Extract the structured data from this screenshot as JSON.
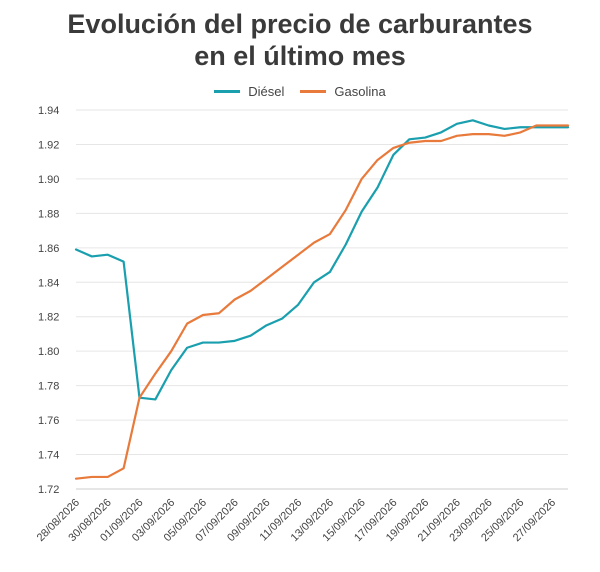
{
  "title_line1": "Evolución del precio de carburantes",
  "title_line2": "en el último mes",
  "colors": {
    "diesel": "#1a9fae",
    "gasolina": "#e87a3c",
    "grid": "#e6e6e6",
    "axis": "#cccccc"
  },
  "chart_data": {
    "type": "line",
    "title": "Evolución del precio de carburantes en el último mes",
    "xlabel": "",
    "ylabel": "",
    "ylim": [
      1.72,
      1.94
    ],
    "yticks": [
      "1.72",
      "1.74",
      "1.76",
      "1.78",
      "1.80",
      "1.82",
      "1.84",
      "1.86",
      "1.88",
      "1.90",
      "1.92",
      "1.94"
    ],
    "grid": true,
    "legend_position": "top-center",
    "x": [
      "28/08/2026",
      "29/08/2026",
      "30/08/2026",
      "31/08/2026",
      "01/09/2026",
      "02/09/2026",
      "03/09/2026",
      "04/09/2026",
      "05/09/2026",
      "06/09/2026",
      "07/09/2026",
      "08/09/2026",
      "09/09/2026",
      "10/09/2026",
      "11/09/2026",
      "12/09/2026",
      "13/09/2026",
      "14/09/2026",
      "15/09/2026",
      "16/09/2026",
      "17/09/2026",
      "18/09/2026",
      "19/09/2026",
      "20/09/2026",
      "21/09/2026",
      "22/09/2026",
      "23/09/2026",
      "24/09/2026",
      "25/09/2026",
      "26/09/2026",
      "27/09/2026",
      "28/09/2026"
    ],
    "xtick_labels": [
      "28/08/2026",
      "30/08/2026",
      "01/09/2026",
      "03/09/2026",
      "05/09/2026",
      "07/09/2026",
      "09/09/2026",
      "11/09/2026",
      "13/09/2026",
      "15/09/2026",
      "17/09/2026",
      "19/09/2026",
      "21/09/2026",
      "23/09/2026",
      "25/09/2026",
      "27/09/2026"
    ],
    "series": [
      {
        "name": "Diésel",
        "values": [
          1.859,
          1.855,
          1.856,
          1.852,
          1.773,
          1.772,
          1.789,
          1.802,
          1.805,
          1.805,
          1.806,
          1.809,
          1.815,
          1.819,
          1.827,
          1.84,
          1.846,
          1.862,
          1.881,
          1.895,
          1.914,
          1.923,
          1.924,
          1.927,
          1.932,
          1.934,
          1.931,
          1.929,
          1.93,
          1.93,
          1.93,
          1.93
        ]
      },
      {
        "name": "Gasolina",
        "values": [
          1.726,
          1.727,
          1.727,
          1.732,
          1.773,
          1.787,
          1.8,
          1.816,
          1.821,
          1.822,
          1.83,
          1.835,
          1.842,
          1.849,
          1.856,
          1.863,
          1.868,
          1.882,
          1.9,
          1.911,
          1.918,
          1.921,
          1.922,
          1.922,
          1.925,
          1.926,
          1.926,
          1.925,
          1.927,
          1.931,
          1.931,
          1.931
        ]
      }
    ]
  }
}
